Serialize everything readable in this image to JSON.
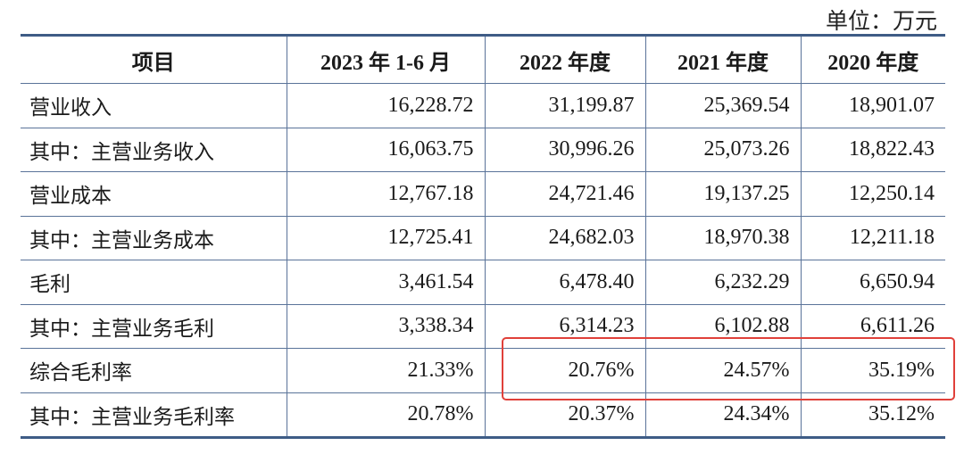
{
  "unit_label": "单位：万元",
  "headers": [
    "项目",
    "2023 年 1-6 月",
    "2022 年度",
    "2021 年度",
    "2020 年度"
  ],
  "rows": [
    {
      "label": "营业收入",
      "values": [
        "16,228.72",
        "31,199.87",
        "25,369.54",
        "18,901.07"
      ]
    },
    {
      "label": "其中：主营业务收入",
      "values": [
        "16,063.75",
        "30,996.26",
        "25,073.26",
        "18,822.43"
      ]
    },
    {
      "label": "营业成本",
      "values": [
        "12,767.18",
        "24,721.46",
        "19,137.25",
        "12,250.14"
      ]
    },
    {
      "label": "其中：主营业务成本",
      "values": [
        "12,725.41",
        "24,682.03",
        "18,970.38",
        "12,211.18"
      ]
    },
    {
      "label": "毛利",
      "values": [
        "3,461.54",
        "6,478.40",
        "6,232.29",
        "6,650.94"
      ]
    },
    {
      "label": "其中：主营业务毛利",
      "values": [
        "3,338.34",
        "6,314.23",
        "6,102.88",
        "6,611.26"
      ]
    },
    {
      "label": "综合毛利率",
      "values": [
        "21.33%",
        "20.76%",
        "24.57%",
        "35.19%"
      ]
    },
    {
      "label": "其中：主营业务毛利率",
      "values": [
        "20.78%",
        "20.37%",
        "24.34%",
        "35.12%"
      ]
    }
  ],
  "highlight_color": "#e0403a",
  "border_color": "#3e5c86"
}
